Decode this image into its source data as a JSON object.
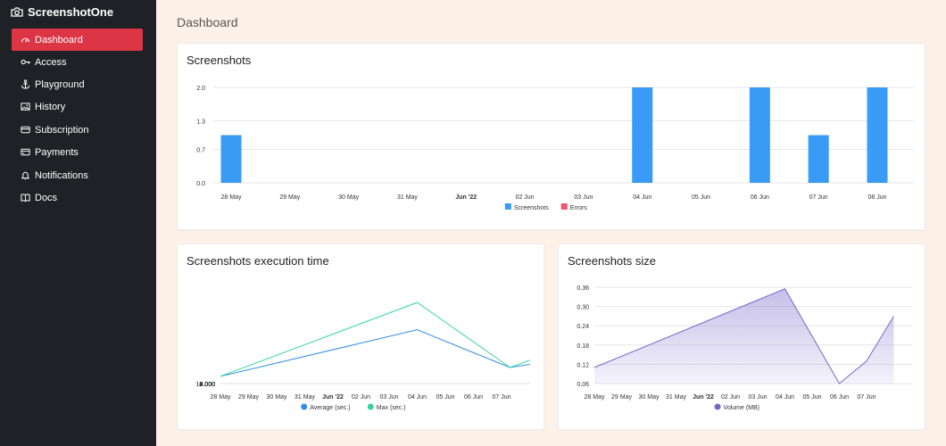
{
  "app": {
    "name": "ScreenshotOne"
  },
  "sidebar": {
    "items": [
      {
        "label": "Dashboard",
        "icon": "gauge-icon",
        "active": true
      },
      {
        "label": "Access",
        "icon": "key-icon",
        "active": false
      },
      {
        "label": "Playground",
        "icon": "anchor-icon",
        "active": false
      },
      {
        "label": "History",
        "icon": "image-icon",
        "active": false
      },
      {
        "label": "Subscription",
        "icon": "card-icon",
        "active": false
      },
      {
        "label": "Payments",
        "icon": "wallet-icon",
        "active": false
      },
      {
        "label": "Notifications",
        "icon": "bell-icon",
        "active": false
      },
      {
        "label": "Docs",
        "icon": "book-icon",
        "active": false
      }
    ]
  },
  "main": {
    "title": "Dashboard"
  },
  "colors": {
    "accent": "#dc3545",
    "sidebar_bg": "#1f2126",
    "bar": "#3a9bf6",
    "errors": "#f0566c",
    "average": "#2f8ee8",
    "max": "#33d6a0",
    "volume": "#7866c9"
  },
  "charts": {
    "screenshots": {
      "title": "Screenshots"
    },
    "execution": {
      "title": "Screenshots execution time"
    },
    "size": {
      "title": "Screenshots size"
    }
  },
  "chart_data": [
    {
      "type": "bar",
      "title": "Screenshots",
      "categories": [
        "28 May",
        "29 May",
        "30 May",
        "31 May",
        "Jun '22",
        "02 Jun",
        "03 Jun",
        "04 Jun",
        "05 Jun",
        "06 Jun",
        "07 Jun",
        "08 Jun"
      ],
      "series": [
        {
          "name": "Screenshots",
          "color": "#3a9bf6",
          "values": [
            1,
            0,
            0,
            0,
            0,
            0,
            0,
            2,
            0,
            2,
            1,
            2
          ]
        },
        {
          "name": "Errors",
          "color": "#f0566c",
          "values": [
            0,
            0,
            0,
            0,
            0,
            0,
            0,
            0,
            0,
            0,
            0,
            0
          ]
        }
      ],
      "yticks": [
        "0.0",
        "0.7",
        "1.3",
        "2.0"
      ],
      "ylim": [
        0,
        2
      ],
      "grid": true,
      "legend": "bottom"
    },
    {
      "type": "line",
      "title": "Screenshots execution time",
      "categories": [
        "28 May",
        "29 May",
        "30 May",
        "31 May",
        "Jun '22",
        "02 Jun",
        "03 Jun",
        "04 Jun",
        "05 Jun",
        "06 Jun",
        "07 Jun"
      ],
      "series": [
        {
          "name": "Average (sec.)",
          "color": "#2f8ee8",
          "points": [
            [
              0,
              900
            ],
            [
              7,
              6700
            ],
            [
              10.3,
              2000
            ],
            [
              11,
              2400
            ]
          ]
        },
        {
          "name": "Max (sec.)",
          "color": "#33d6a0",
          "points": [
            [
              0,
              900
            ],
            [
              7,
              10100
            ],
            [
              10.3,
              2000
            ],
            [
              11,
              2900
            ]
          ]
        }
      ],
      "yticks": [
        "0.000",
        "2.000",
        "4.000",
        "6.000",
        "8.000",
        "10.000",
        "12.000"
      ],
      "ylim": [
        0,
        12000
      ],
      "grid": true,
      "legend": "bottom"
    },
    {
      "type": "area",
      "title": "Screenshots size",
      "categories": [
        "28 May",
        "29 May",
        "30 May",
        "31 May",
        "Jun '22",
        "02 Jun",
        "03 Jun",
        "04 Jun",
        "05 Jun",
        "06 Jun",
        "07 Jun"
      ],
      "series": [
        {
          "name": "Volume (MB)",
          "color": "#7866c9",
          "points": [
            [
              0,
              0.11
            ],
            [
              7,
              0.355
            ],
            [
              9,
              0.06
            ],
            [
              10,
              0.13
            ],
            [
              11,
              0.27
            ]
          ]
        }
      ],
      "yticks": [
        "0.06",
        "0.12",
        "0.18",
        "0.24",
        "0.30",
        "0.36"
      ],
      "ylim": [
        0.06,
        0.36
      ],
      "grid": true,
      "legend": "bottom"
    }
  ]
}
